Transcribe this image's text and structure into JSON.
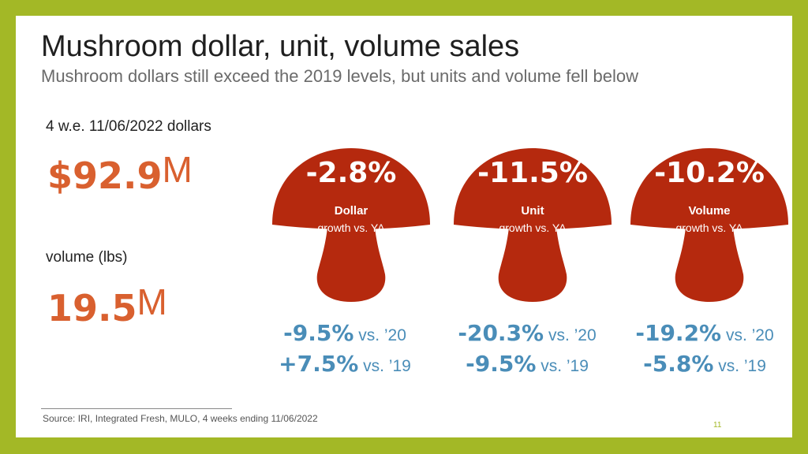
{
  "title": "Mushroom dollar, unit, volume sales",
  "subtitle": "Mushroom dollars still exceed the 2019 levels, but units and volume fell below",
  "left": {
    "dollars_label": "4 w.e. 11/06/2022 dollars",
    "dollars_value": "$92.9",
    "dollars_unit": "M",
    "volume_label": "volume (lbs)",
    "volume_value": "19.5",
    "volume_unit": "M"
  },
  "mushrooms": [
    {
      "pct": "-2.8%",
      "label": "Dollar",
      "sub": "growth vs. YA",
      "cmp": [
        {
          "v": "-9.5%",
          "t": " vs. ’20"
        },
        {
          "v": "+7.5%",
          "t": " vs. ’19"
        }
      ]
    },
    {
      "pct": "-11.5%",
      "label": "Unit",
      "sub": "growth vs. YA",
      "cmp": [
        {
          "v": "-20.3%",
          "t": " vs. ’20"
        },
        {
          "v": "-9.5%",
          "t": " vs. ’19"
        }
      ]
    },
    {
      "pct": "-10.2%",
      "label": "Volume",
      "sub": "growth vs. YA",
      "cmp": [
        {
          "v": "-19.2%",
          "t": " vs. ’20"
        },
        {
          "v": "-5.8%",
          "t": " vs. ’19"
        }
      ]
    }
  ],
  "source": "Source: IRI, Integrated Fresh, MULO, 4 weeks ending 11/06/2022",
  "page_number": "11",
  "colors": {
    "frame": "#a3b826",
    "mushroom": "#b5290e",
    "accent_orange": "#d9602f",
    "comparison_blue": "#4a8db8"
  }
}
